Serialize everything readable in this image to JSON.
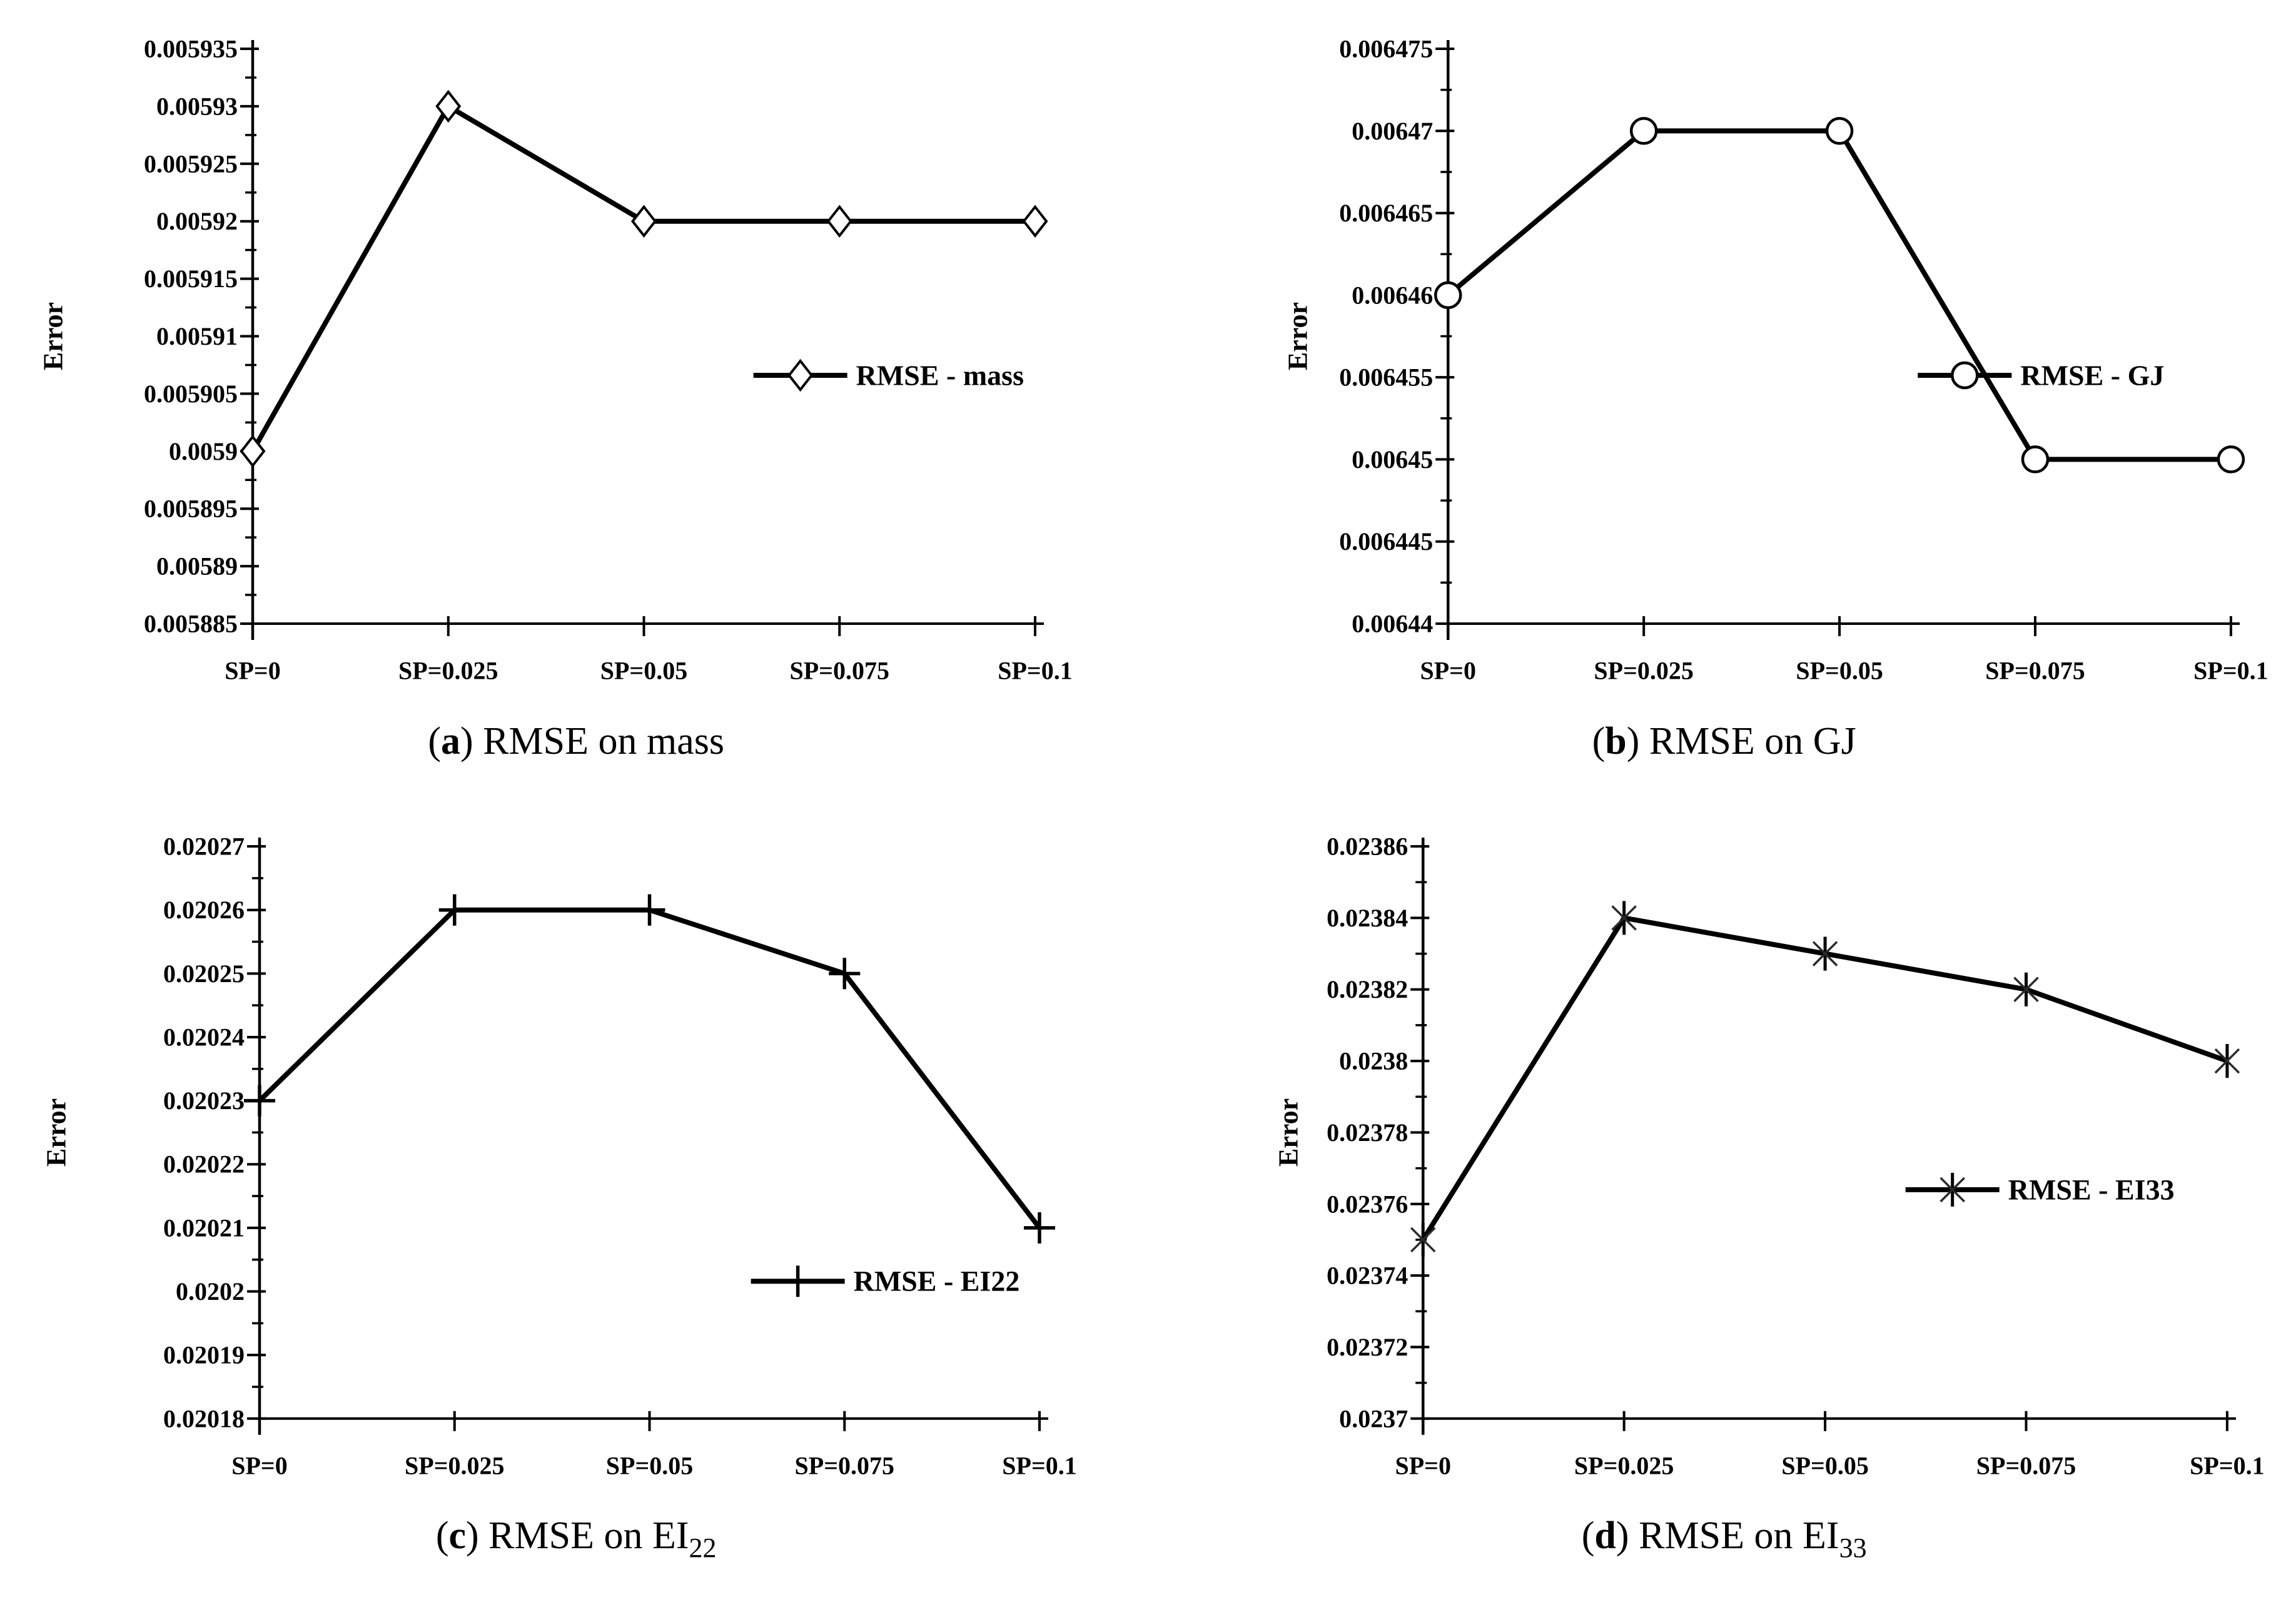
{
  "figure": {
    "background": "#ffffff",
    "text_color": "#000000",
    "line_color": "#000000",
    "y_axis_title": "Error",
    "x_categories": [
      "SP=0",
      "SP=0.025",
      "SP=0.05",
      "SP=0.075",
      "SP=0.1"
    ]
  },
  "chart_data": [
    {
      "type": "line",
      "title": "(a) RMSE on mass",
      "caption": {
        "letter": "a",
        "text": "RMSE on mass",
        "sub": ""
      },
      "categories": [
        "SP=0",
        "SP=0.025",
        "SP=0.05",
        "SP=0.075",
        "SP=0.1"
      ],
      "xlabel": "",
      "ylabel": "Error",
      "series": [
        {
          "name": "RMSE - mass",
          "marker": "diamond",
          "color": "#000000",
          "values": [
            0.0059,
            0.00593,
            0.00592,
            0.00592,
            0.00592
          ]
        }
      ],
      "ylim": [
        0.005885,
        0.005935
      ],
      "ytick_labels": [
        "0.005885",
        "0.00589",
        "0.005895",
        "0.0059",
        "0.005905",
        "0.00591",
        "0.005915",
        "0.00592",
        "0.005925",
        "0.00593",
        "0.005935"
      ],
      "minor_y_ticks": true,
      "grid": false,
      "legend_position": "inside-right",
      "legend_pos": {
        "x_frac": 0.64,
        "y_frac": 0.568
      }
    },
    {
      "type": "line",
      "title": "(b) RMSE on GJ",
      "caption": {
        "letter": "b",
        "text": "RMSE on GJ",
        "sub": ""
      },
      "categories": [
        "SP=0",
        "SP=0.025",
        "SP=0.05",
        "SP=0.075",
        "SP=0.1"
      ],
      "xlabel": "",
      "ylabel": "Error",
      "series": [
        {
          "name": "RMSE - GJ",
          "marker": "circle",
          "color": "#000000",
          "values": [
            0.00646,
            0.00647,
            0.00647,
            0.00645,
            0.00645
          ]
        }
      ],
      "ylim": [
        0.00644,
        0.006475
      ],
      "ytick_labels": [
        "0.00644",
        "0.006445",
        "0.00645",
        "0.006455",
        "0.00646",
        "0.006465",
        "0.00647",
        "0.006475"
      ],
      "minor_y_ticks": true,
      "grid": false,
      "legend_position": "inside-right",
      "legend_pos": {
        "x_frac": 0.6,
        "y_frac": 0.568
      }
    },
    {
      "type": "line",
      "title": "(c) RMSE on EI22",
      "caption": {
        "letter": "c",
        "text": "RMSE on EI",
        "sub": "22"
      },
      "categories": [
        "SP=0",
        "SP=0.025",
        "SP=0.05",
        "SP=0.075",
        "SP=0.1"
      ],
      "xlabel": "",
      "ylabel": "Error",
      "series": [
        {
          "name": "RMSE - EI22",
          "marker": "plus",
          "color": "#000000",
          "values": [
            0.02023,
            0.02026,
            0.02026,
            0.02025,
            0.02021
          ]
        }
      ],
      "ylim": [
        0.02018,
        0.02027
      ],
      "ytick_labels": [
        "0.02018",
        "0.02019",
        "0.0202",
        "0.02021",
        "0.02022",
        "0.02023",
        "0.02024",
        "0.02025",
        "0.02026",
        "0.02027"
      ],
      "minor_y_ticks": true,
      "grid": false,
      "legend_position": "inside-right",
      "legend_pos": {
        "x_frac": 0.63,
        "y_frac": 0.76
      }
    },
    {
      "type": "line",
      "title": "(d) RMSE on EI33",
      "caption": {
        "letter": "d",
        "text": "RMSE on EI",
        "sub": "33"
      },
      "categories": [
        "SP=0",
        "SP=0.025",
        "SP=0.05",
        "SP=0.075",
        "SP=0.1"
      ],
      "xlabel": "",
      "ylabel": "Error",
      "series": [
        {
          "name": "RMSE - EI33",
          "marker": "star",
          "color": "#000000",
          "values": [
            0.02375,
            0.02384,
            0.02383,
            0.02382,
            0.0238
          ]
        }
      ],
      "ylim": [
        0.0237,
        0.02386
      ],
      "ytick_labels": [
        "0.0237",
        "0.02372",
        "0.02374",
        "0.02376",
        "0.02378",
        "0.0238",
        "0.02382",
        "0.02384",
        "0.02386"
      ],
      "minor_y_ticks": true,
      "grid": false,
      "legend_position": "inside-right",
      "legend_pos": {
        "x_frac": 0.6,
        "y_frac": 0.6
      }
    }
  ]
}
